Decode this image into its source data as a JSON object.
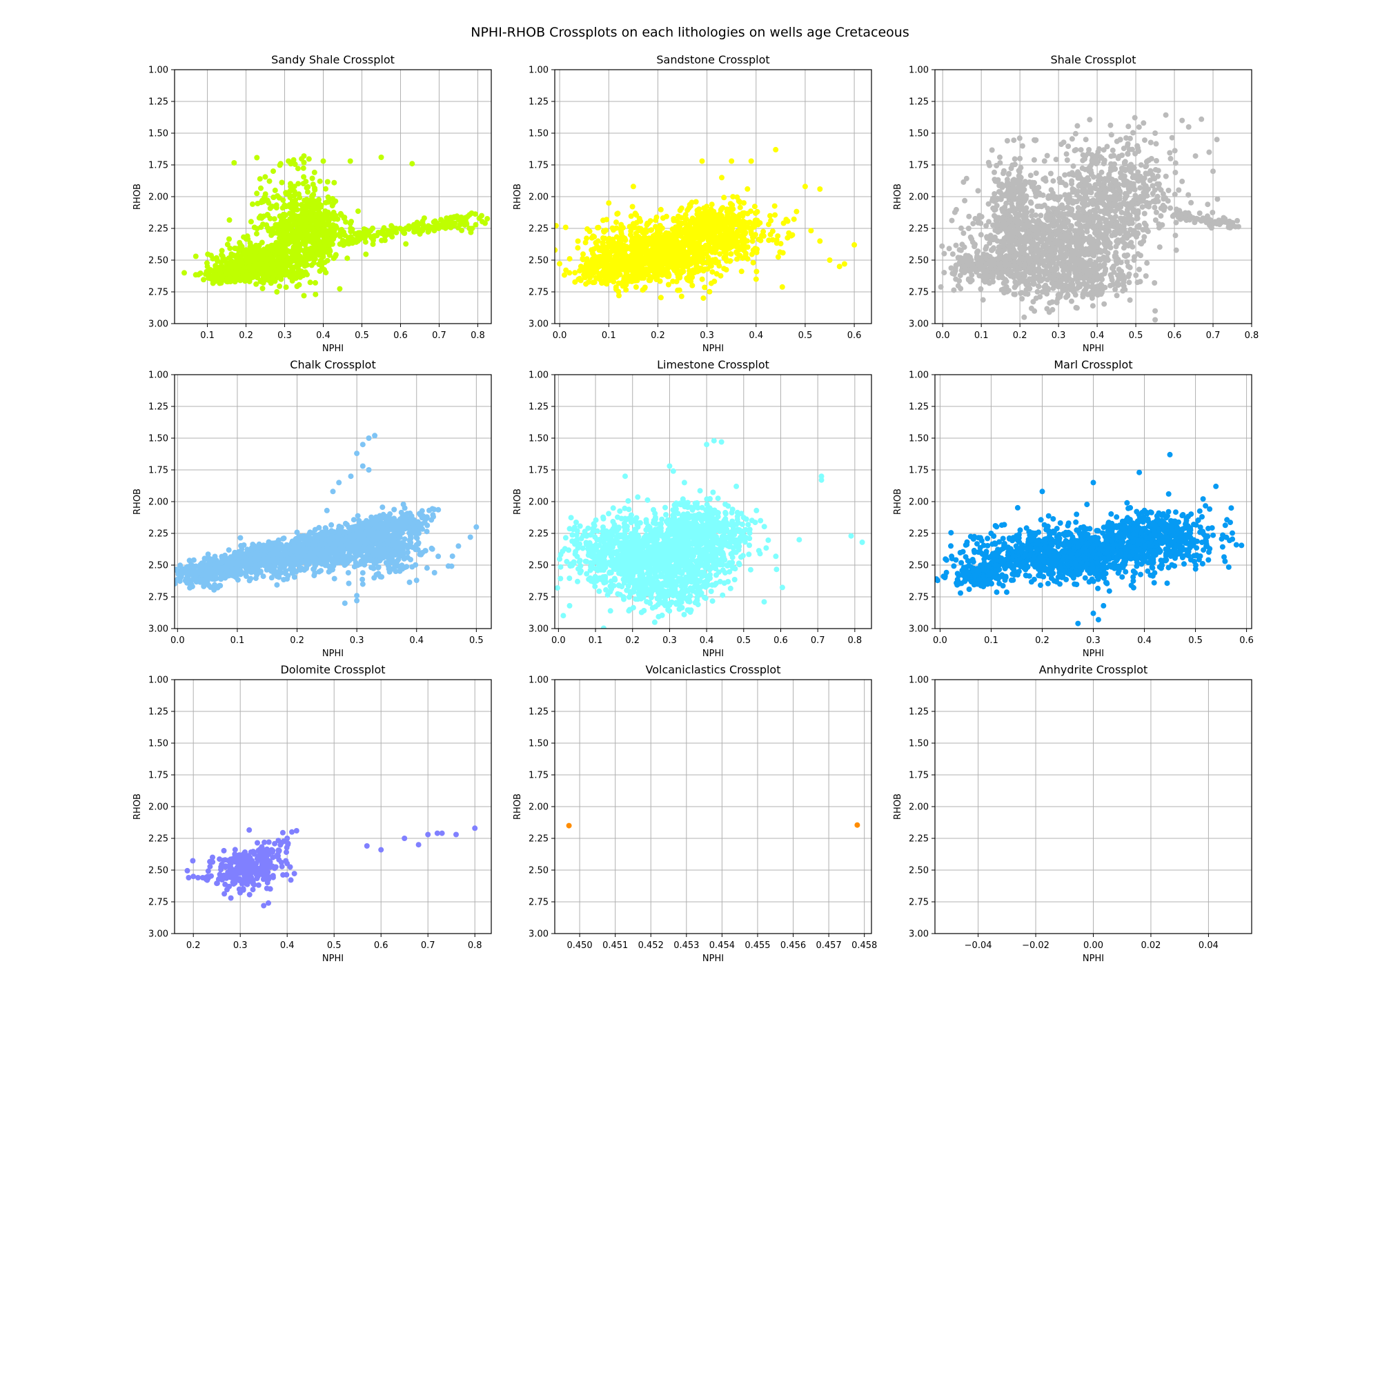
{
  "figure": {
    "title": "NPHI-RHOB Crossplots on each lithologies on wells age Cretaceous"
  },
  "chart_data": [
    {
      "type": "scatter",
      "title": "Sandy Shale Crossplot",
      "xlabel": "NPHI",
      "ylabel": "RHOB",
      "color": "#bfff00",
      "xlim": [
        0.015,
        0.835
      ],
      "ylim": [
        3.0,
        1.0
      ],
      "y_inverted": true,
      "grid": true,
      "xticks": [
        0.1,
        0.2,
        0.3,
        0.4,
        0.5,
        0.6,
        0.7,
        0.8
      ],
      "xtick_labels": [
        "0.1",
        "0.2",
        "0.3",
        "0.4",
        "0.5",
        "0.6",
        "0.7",
        "0.8"
      ],
      "yticks": [
        1.0,
        1.25,
        1.5,
        1.75,
        2.0,
        2.25,
        2.5,
        2.75,
        3.0
      ],
      "ytick_labels": [
        "1.00",
        "1.25",
        "1.50",
        "1.75",
        "2.00",
        "2.25",
        "2.50",
        "2.75",
        "3.00"
      ],
      "clusters": [
        {
          "cx": 0.25,
          "cy": 2.52,
          "sx": 0.06,
          "sy": 0.08,
          "n": 500
        },
        {
          "cx": 0.36,
          "cy": 2.28,
          "sx": 0.05,
          "sy": 0.13,
          "n": 500
        },
        {
          "cx": 0.15,
          "cy": 2.62,
          "sx": 0.03,
          "sy": 0.03,
          "n": 150
        },
        {
          "cx": 0.33,
          "cy": 2.05,
          "sx": 0.05,
          "sy": 0.15,
          "n": 120
        }
      ],
      "trends": [
        {
          "x0": 0.45,
          "y0": 2.35,
          "x1": 0.81,
          "y1": 2.17,
          "spread": 0.025,
          "n": 180
        }
      ],
      "points": [
        [
          0.04,
          2.6
        ],
        [
          0.07,
          2.47
        ],
        [
          0.1,
          2.55
        ],
        [
          0.31,
          1.72
        ],
        [
          0.35,
          1.68
        ],
        [
          0.4,
          1.72
        ],
        [
          0.47,
          1.72
        ],
        [
          0.55,
          1.69
        ],
        [
          0.63,
          1.74
        ],
        [
          0.28,
          2.75
        ],
        [
          0.35,
          2.78
        ],
        [
          0.38,
          2.77
        ],
        [
          0.81,
          2.15
        ],
        [
          0.26,
          2.66
        ],
        [
          0.5,
          2.3
        ]
      ]
    },
    {
      "type": "scatter",
      "title": "Sandstone Crossplot",
      "xlabel": "NPHI",
      "ylabel": "RHOB",
      "color": "#ffff00",
      "xlim": [
        -0.01,
        0.635
      ],
      "ylim": [
        3.0,
        1.0
      ],
      "y_inverted": true,
      "grid": true,
      "xticks": [
        0.0,
        0.1,
        0.2,
        0.3,
        0.4,
        0.5,
        0.6
      ],
      "xtick_labels": [
        "0.0",
        "0.1",
        "0.2",
        "0.3",
        "0.4",
        "0.5",
        "0.6"
      ],
      "yticks": [
        1.0,
        1.25,
        1.5,
        1.75,
        2.0,
        2.25,
        2.5,
        2.75,
        3.0
      ],
      "ytick_labels": [
        "1.00",
        "1.25",
        "1.50",
        "1.75",
        "2.00",
        "2.25",
        "2.50",
        "2.75",
        "3.00"
      ],
      "clusters": [
        {
          "cx": 0.2,
          "cy": 2.45,
          "sx": 0.07,
          "sy": 0.12,
          "n": 900
        },
        {
          "cx": 0.33,
          "cy": 2.25,
          "sx": 0.06,
          "sy": 0.1,
          "n": 400
        },
        {
          "cx": 0.1,
          "cy": 2.58,
          "sx": 0.04,
          "sy": 0.05,
          "n": 200
        }
      ],
      "trends": [],
      "points": [
        [
          0.02,
          2.6
        ],
        [
          0.1,
          2.05
        ],
        [
          0.15,
          1.92
        ],
        [
          0.29,
          1.72
        ],
        [
          0.35,
          1.72
        ],
        [
          0.39,
          1.72
        ],
        [
          0.44,
          1.63
        ],
        [
          0.5,
          1.92
        ],
        [
          0.53,
          1.94
        ],
        [
          0.55,
          2.5
        ],
        [
          0.6,
          2.38
        ],
        [
          0.57,
          2.55
        ],
        [
          0.27,
          2.7
        ],
        [
          0.4,
          2.65
        ],
        [
          0.53,
          2.35
        ],
        [
          0.58,
          2.53
        ],
        [
          0.33,
          1.85
        ]
      ]
    },
    {
      "type": "scatter",
      "title": "Shale Crossplot",
      "xlabel": "NPHI",
      "ylabel": "RHOB",
      "color": "#bbbbbb",
      "xlim": [
        -0.02,
        0.8
      ],
      "ylim": [
        3.0,
        1.0
      ],
      "y_inverted": true,
      "grid": true,
      "xticks": [
        0.0,
        0.1,
        0.2,
        0.3,
        0.4,
        0.5,
        0.6,
        0.7,
        0.8
      ],
      "xtick_labels": [
        "0.0",
        "0.1",
        "0.2",
        "0.3",
        "0.4",
        "0.5",
        "0.6",
        "0.7",
        "0.8"
      ],
      "yticks": [
        1.0,
        1.25,
        1.5,
        1.75,
        2.0,
        2.25,
        2.5,
        2.75,
        3.0
      ],
      "ytick_labels": [
        "1.00",
        "1.25",
        "1.50",
        "1.75",
        "2.00",
        "2.25",
        "2.50",
        "2.75",
        "3.00"
      ],
      "clusters": [
        {
          "cx": 0.3,
          "cy": 2.35,
          "sx": 0.1,
          "sy": 0.2,
          "n": 900
        },
        {
          "cx": 0.45,
          "cy": 1.95,
          "sx": 0.08,
          "sy": 0.2,
          "n": 500
        },
        {
          "cx": 0.18,
          "cy": 2.1,
          "sx": 0.03,
          "sy": 0.2,
          "n": 250
        },
        {
          "cx": 0.12,
          "cy": 2.55,
          "sx": 0.05,
          "sy": 0.08,
          "n": 250
        },
        {
          "cx": 0.35,
          "cy": 2.65,
          "sx": 0.08,
          "sy": 0.1,
          "n": 200
        }
      ],
      "trends": [
        {
          "x0": 0.6,
          "y0": 2.15,
          "x1": 0.76,
          "y1": 2.22,
          "spread": 0.02,
          "n": 80
        }
      ],
      "points": [
        [
          0.52,
          1.42
        ],
        [
          0.62,
          1.4
        ],
        [
          0.67,
          1.39
        ],
        [
          0.55,
          1.5
        ],
        [
          0.69,
          1.65
        ],
        [
          0.7,
          1.8
        ],
        [
          0.71,
          1.55
        ],
        [
          0.46,
          1.55
        ],
        [
          0.2,
          1.7
        ],
        [
          0.23,
          2.88
        ],
        [
          0.55,
          2.9
        ],
        [
          0.55,
          2.97
        ],
        [
          0.04,
          2.48
        ],
        [
          0.62,
          1.88
        ]
      ]
    },
    {
      "type": "scatter",
      "title": "Chalk Crossplot",
      "xlabel": "NPHI",
      "ylabel": "RHOB",
      "color": "#7ec4f5",
      "xlim": [
        -0.005,
        0.525
      ],
      "ylim": [
        3.0,
        1.0
      ],
      "y_inverted": true,
      "grid": true,
      "xticks": [
        0.0,
        0.1,
        0.2,
        0.3,
        0.4,
        0.5
      ],
      "xtick_labels": [
        "0.0",
        "0.1",
        "0.2",
        "0.3",
        "0.4",
        "0.5"
      ],
      "yticks": [
        1.0,
        1.25,
        1.5,
        1.75,
        2.0,
        2.25,
        2.5,
        2.75,
        3.0
      ],
      "ytick_labels": [
        "1.00",
        "1.25",
        "1.50",
        "1.75",
        "2.00",
        "2.25",
        "2.50",
        "2.75",
        "3.00"
      ],
      "clusters": [
        {
          "cx": 0.34,
          "cy": 2.45,
          "sx": 0.04,
          "sy": 0.08,
          "n": 120
        }
      ],
      "trends": [
        {
          "x0": 0.02,
          "y0": 2.59,
          "x1": 0.4,
          "y1": 2.15,
          "spread": 0.05,
          "n": 1400
        },
        {
          "x0": 0.15,
          "y0": 2.55,
          "x1": 0.38,
          "y1": 2.35,
          "spread": 0.05,
          "n": 300
        }
      ],
      "points": [
        [
          0.25,
          2.07
        ],
        [
          0.26,
          1.92
        ],
        [
          0.27,
          1.85
        ],
        [
          0.29,
          1.8
        ],
        [
          0.3,
          1.62
        ],
        [
          0.31,
          1.55
        ],
        [
          0.32,
          1.5
        ],
        [
          0.33,
          1.48
        ],
        [
          0.31,
          1.72
        ],
        [
          0.32,
          1.75
        ],
        [
          0.3,
          2.78
        ],
        [
          0.31,
          2.65
        ],
        [
          0.4,
          2.62
        ],
        [
          0.43,
          2.56
        ],
        [
          0.46,
          2.43
        ],
        [
          0.47,
          2.35
        ],
        [
          0.49,
          2.28
        ],
        [
          0.5,
          2.2
        ],
        [
          0.28,
          2.8
        ],
        [
          0.3,
          2.74
        ]
      ]
    },
    {
      "type": "scatter",
      "title": "Limestone Crossplot",
      "xlabel": "NPHI",
      "ylabel": "RHOB",
      "color": "#80ffff",
      "xlim": [
        -0.01,
        0.845
      ],
      "ylim": [
        3.0,
        1.0
      ],
      "y_inverted": true,
      "grid": true,
      "xticks": [
        0.0,
        0.1,
        0.2,
        0.3,
        0.4,
        0.5,
        0.6,
        0.7,
        0.8
      ],
      "xtick_labels": [
        "0.0",
        "0.1",
        "0.2",
        "0.3",
        "0.4",
        "0.5",
        "0.6",
        "0.7",
        "0.8"
      ],
      "yticks": [
        1.0,
        1.25,
        1.5,
        1.75,
        2.0,
        2.25,
        2.5,
        2.75,
        3.0
      ],
      "ytick_labels": [
        "1.00",
        "1.25",
        "1.50",
        "1.75",
        "2.00",
        "2.25",
        "2.50",
        "2.75",
        "3.00"
      ],
      "clusters": [
        {
          "cx": 0.25,
          "cy": 2.42,
          "sx": 0.11,
          "sy": 0.15,
          "n": 1200
        },
        {
          "cx": 0.4,
          "cy": 2.25,
          "sx": 0.06,
          "sy": 0.12,
          "n": 400
        },
        {
          "cx": 0.3,
          "cy": 2.72,
          "sx": 0.05,
          "sy": 0.08,
          "n": 150
        }
      ],
      "trends": [],
      "points": [
        [
          0.4,
          1.55
        ],
        [
          0.42,
          1.52
        ],
        [
          0.44,
          1.53
        ],
        [
          0.3,
          1.72
        ],
        [
          0.31,
          1.76
        ],
        [
          0.34,
          1.85
        ],
        [
          0.65,
          2.3
        ],
        [
          0.71,
          1.8
        ],
        [
          0.71,
          1.83
        ],
        [
          0.79,
          2.27
        ],
        [
          0.82,
          2.32
        ],
        [
          0.26,
          2.95
        ],
        [
          0.19,
          2.86
        ],
        [
          0.03,
          2.82
        ],
        [
          0.18,
          1.8
        ],
        [
          0.48,
          1.88
        ]
      ]
    },
    {
      "type": "scatter",
      "title": "Marl Crossplot",
      "xlabel": "NPHI",
      "ylabel": "RHOB",
      "color": "#069af3",
      "xlim": [
        -0.01,
        0.61
      ],
      "ylim": [
        3.0,
        1.0
      ],
      "y_inverted": true,
      "grid": true,
      "xticks": [
        0.0,
        0.1,
        0.2,
        0.3,
        0.4,
        0.5,
        0.6
      ],
      "xtick_labels": [
        "0.0",
        "0.1",
        "0.2",
        "0.3",
        "0.4",
        "0.5",
        "0.6"
      ],
      "yticks": [
        1.0,
        1.25,
        1.5,
        1.75,
        2.0,
        2.25,
        2.5,
        2.75,
        3.0
      ],
      "ytick_labels": [
        "1.00",
        "1.25",
        "1.50",
        "1.75",
        "2.00",
        "2.25",
        "2.50",
        "2.75",
        "3.00"
      ],
      "clusters": [
        {
          "cx": 0.25,
          "cy": 2.42,
          "sx": 0.09,
          "sy": 0.1,
          "n": 1000
        },
        {
          "cx": 0.42,
          "cy": 2.28,
          "sx": 0.06,
          "sy": 0.1,
          "n": 500
        },
        {
          "cx": 0.08,
          "cy": 2.58,
          "sx": 0.03,
          "sy": 0.04,
          "n": 150
        }
      ],
      "trends": [],
      "points": [
        [
          0.45,
          1.63
        ],
        [
          0.39,
          1.77
        ],
        [
          0.3,
          1.85
        ],
        [
          0.2,
          1.92
        ],
        [
          0.54,
          1.88
        ],
        [
          0.58,
          2.34
        ],
        [
          0.3,
          2.88
        ],
        [
          0.32,
          2.82
        ],
        [
          0.27,
          2.96
        ],
        [
          0.31,
          2.93
        ],
        [
          0.04,
          2.72
        ],
        [
          0.1,
          2.25
        ],
        [
          0.57,
          2.05
        ]
      ]
    },
    {
      "type": "scatter",
      "title": "Dolomite Crossplot",
      "xlabel": "NPHI",
      "ylabel": "RHOB",
      "color": "#8080ff",
      "xlim": [
        0.16,
        0.835
      ],
      "ylim": [
        3.0,
        1.0
      ],
      "y_inverted": true,
      "grid": true,
      "xticks": [
        0.2,
        0.3,
        0.4,
        0.5,
        0.6,
        0.7,
        0.8
      ],
      "xtick_labels": [
        "0.2",
        "0.3",
        "0.4",
        "0.5",
        "0.6",
        "0.7",
        "0.8"
      ],
      "yticks": [
        1.0,
        1.25,
        1.5,
        1.75,
        2.0,
        2.25,
        2.5,
        2.75,
        3.0
      ],
      "ytick_labels": [
        "1.00",
        "1.25",
        "1.50",
        "1.75",
        "2.00",
        "2.25",
        "2.50",
        "2.75",
        "3.00"
      ],
      "clusters": [
        {
          "cx": 0.31,
          "cy": 2.5,
          "sx": 0.035,
          "sy": 0.07,
          "n": 260
        },
        {
          "cx": 0.37,
          "cy": 2.35,
          "sx": 0.02,
          "sy": 0.06,
          "n": 50
        }
      ],
      "trends": [],
      "points": [
        [
          0.19,
          2.56
        ],
        [
          0.2,
          2.55
        ],
        [
          0.21,
          2.56
        ],
        [
          0.22,
          2.56
        ],
        [
          0.41,
          2.2
        ],
        [
          0.42,
          2.19
        ],
        [
          0.4,
          2.25
        ],
        [
          0.35,
          2.78
        ],
        [
          0.36,
          2.76
        ],
        [
          0.28,
          2.72
        ],
        [
          0.57,
          2.31
        ],
        [
          0.6,
          2.34
        ],
        [
          0.65,
          2.25
        ],
        [
          0.68,
          2.3
        ],
        [
          0.7,
          2.22
        ],
        [
          0.72,
          2.21
        ],
        [
          0.73,
          2.21
        ],
        [
          0.76,
          2.22
        ],
        [
          0.8,
          2.17
        ]
      ]
    },
    {
      "type": "scatter",
      "title": "Volcaniclastics Crossplot",
      "xlabel": "NPHI",
      "ylabel": "RHOB",
      "color": "#ff8c00",
      "xlim": [
        0.4493,
        0.4582
      ],
      "ylim": [
        3.0,
        1.0
      ],
      "y_inverted": true,
      "grid": true,
      "xticks": [
        0.45,
        0.451,
        0.452,
        0.453,
        0.454,
        0.455,
        0.456,
        0.457,
        0.458
      ],
      "xtick_labels": [
        "0.450",
        "0.451",
        "0.452",
        "0.453",
        "0.454",
        "0.455",
        "0.456",
        "0.457",
        "0.458"
      ],
      "yticks": [
        1.0,
        1.25,
        1.5,
        1.75,
        2.0,
        2.25,
        2.5,
        2.75,
        3.0
      ],
      "ytick_labels": [
        "1.00",
        "1.25",
        "1.50",
        "1.75",
        "2.00",
        "2.25",
        "2.50",
        "2.75",
        "3.00"
      ],
      "clusters": [],
      "trends": [],
      "points": [
        [
          0.4497,
          2.15
        ],
        [
          0.4578,
          2.145
        ]
      ]
    },
    {
      "type": "scatter",
      "title": "Anhydrite Crossplot",
      "xlabel": "NPHI",
      "ylabel": "RHOB",
      "color": "#1f77b4",
      "xlim": [
        -0.055,
        0.055
      ],
      "ylim": [
        3.0,
        1.0
      ],
      "y_inverted": true,
      "grid": true,
      "xticks": [
        -0.04,
        -0.02,
        0.0,
        0.02,
        0.04
      ],
      "xtick_labels": [
        "−0.04",
        "−0.02",
        "0.00",
        "0.02",
        "0.04"
      ],
      "yticks": [
        1.0,
        1.25,
        1.5,
        1.75,
        2.0,
        2.25,
        2.5,
        2.75,
        3.0
      ],
      "ytick_labels": [
        "1.00",
        "1.25",
        "1.50",
        "1.75",
        "2.00",
        "2.25",
        "2.50",
        "2.75",
        "3.00"
      ],
      "clusters": [],
      "trends": [],
      "points": []
    }
  ]
}
